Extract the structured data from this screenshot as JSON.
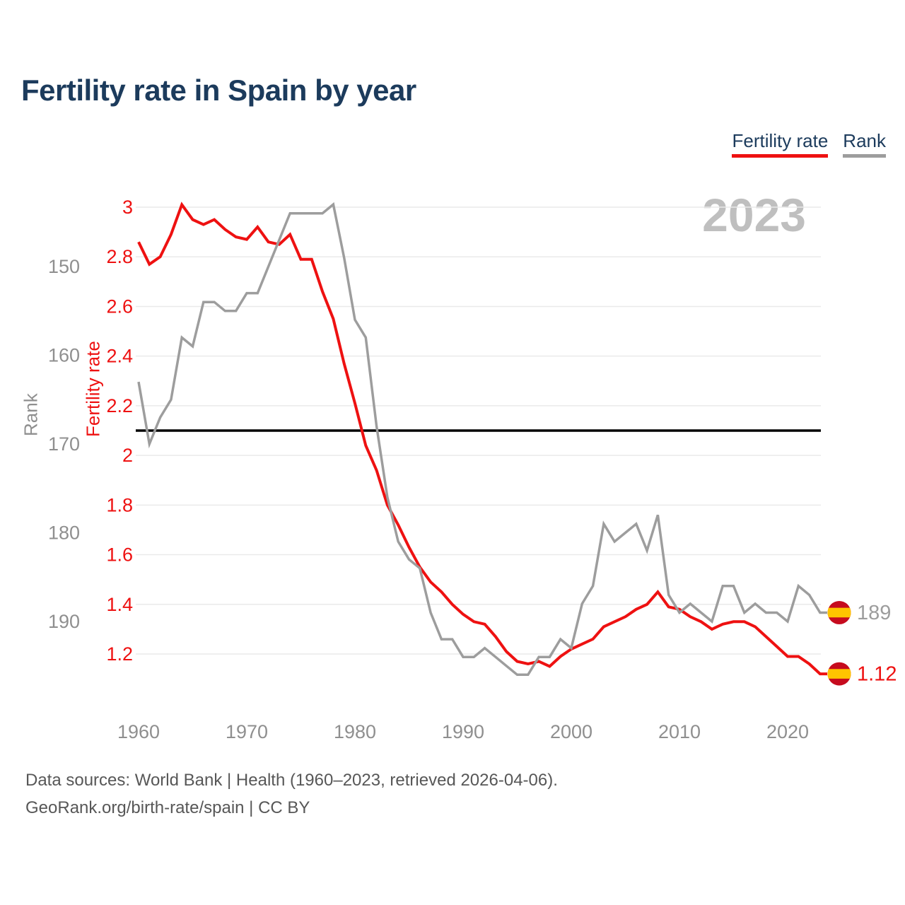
{
  "header": {
    "title": "Fertility rate in Spain by year"
  },
  "legend": {
    "items": [
      {
        "label": "Fertility rate",
        "color": "#ee1111"
      },
      {
        "label": "Rank",
        "color": "#9d9d9d"
      }
    ]
  },
  "watermark": {
    "year": "2023"
  },
  "footer": {
    "line1": "Data sources: World Bank | Health (1960–2023, retrieved 2026-04-06).",
    "line2": "GeoRank.org/birth-rate/spain | CC BY"
  },
  "colors": {
    "fertility_line": "#ee1111",
    "rank_line": "#9d9d9d",
    "axis_text": "#8f8f8f",
    "grid_line": "#eaeaea",
    "reference_line": "#000000",
    "flag_red": "#c60b1e",
    "flag_yellow": "#ffc400"
  },
  "chart_data": {
    "type": "line",
    "title": "Fertility rate in Spain by year",
    "watermark": "2023",
    "grid": true,
    "legend_position": "top-right",
    "x": [
      1960,
      1961,
      1962,
      1963,
      1964,
      1965,
      1966,
      1967,
      1968,
      1969,
      1970,
      1971,
      1972,
      1973,
      1974,
      1975,
      1976,
      1977,
      1978,
      1979,
      1980,
      1981,
      1982,
      1983,
      1984,
      1985,
      1986,
      1987,
      1988,
      1989,
      1990,
      1991,
      1992,
      1993,
      1994,
      1995,
      1996,
      1997,
      1998,
      1999,
      2000,
      2001,
      2002,
      2003,
      2004,
      2005,
      2006,
      2007,
      2008,
      2009,
      2010,
      2011,
      2012,
      2013,
      2014,
      2015,
      2016,
      2017,
      2018,
      2019,
      2020,
      2021,
      2022,
      2023
    ],
    "series": [
      {
        "name": "Fertility rate",
        "axis": "fertility",
        "color": "#ee1111",
        "end_label": "1.12",
        "values": [
          2.86,
          2.77,
          2.8,
          2.89,
          3.01,
          2.95,
          2.93,
          2.95,
          2.91,
          2.88,
          2.87,
          2.92,
          2.86,
          2.85,
          2.89,
          2.79,
          2.79,
          2.66,
          2.55,
          2.37,
          2.21,
          2.04,
          1.94,
          1.8,
          1.72,
          1.63,
          1.55,
          1.49,
          1.45,
          1.4,
          1.36,
          1.33,
          1.32,
          1.27,
          1.21,
          1.17,
          1.16,
          1.17,
          1.15,
          1.19,
          1.22,
          1.24,
          1.26,
          1.31,
          1.33,
          1.35,
          1.38,
          1.4,
          1.45,
          1.39,
          1.38,
          1.35,
          1.33,
          1.3,
          1.32,
          1.33,
          1.33,
          1.31,
          1.27,
          1.23,
          1.19,
          1.19,
          1.16,
          1.12
        ]
      },
      {
        "name": "Rank",
        "axis": "rank",
        "color": "#9d9d9d",
        "end_label": "189",
        "values": [
          163,
          170,
          167,
          165,
          158,
          159,
          154,
          154,
          155,
          155,
          153,
          153,
          150,
          147,
          144,
          144,
          144,
          144,
          143,
          149,
          156,
          158,
          168,
          176,
          181,
          183,
          184,
          189,
          192,
          192,
          194,
          194,
          193,
          194,
          195,
          196,
          196,
          194,
          194,
          192,
          193,
          188,
          186,
          179,
          181,
          180,
          179,
          182,
          178,
          187,
          189,
          188,
          189,
          190,
          186,
          186,
          189,
          188,
          189,
          189,
          190,
          186,
          187,
          189
        ]
      }
    ],
    "axes": {
      "x": {
        "ticks": [
          1960,
          1970,
          1980,
          1990,
          2000,
          2010,
          2020
        ],
        "range": [
          1960,
          2023
        ]
      },
      "y_fertility": {
        "label": "Fertility rate",
        "color": "#ee1111",
        "ticks": [
          3,
          2.8,
          2.6,
          2.4,
          2.2,
          2,
          1.8,
          1.6,
          1.4,
          1.2
        ],
        "range": [
          1.05,
          3.05
        ]
      },
      "y_rank": {
        "label": "Rank",
        "color": "#8f8f8f",
        "ticks": [
          150,
          160,
          170,
          180,
          190
        ],
        "inverted": true,
        "range": [
          142,
          197
        ]
      }
    },
    "reference_line": {
      "axis": "fertility",
      "value": 2.1,
      "color": "#000000"
    }
  }
}
